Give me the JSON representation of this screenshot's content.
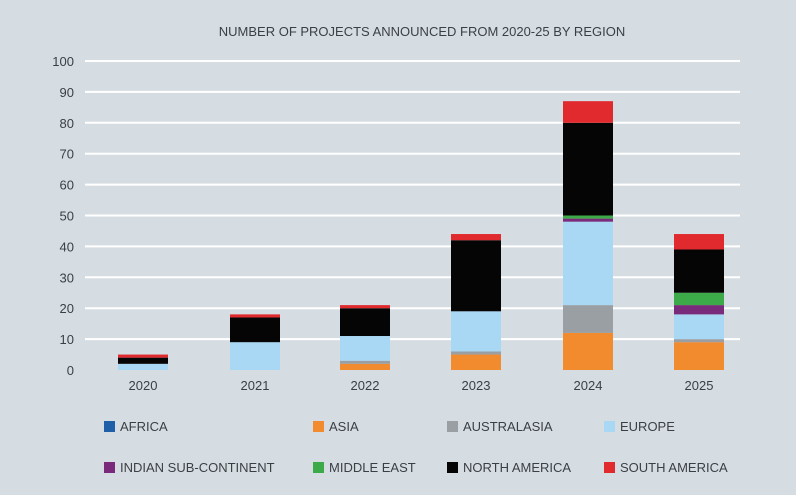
{
  "chart_data": {
    "type": "bar",
    "stacked": true,
    "title": "NUMBER OF PROJECTS ANNOUNCED FROM 2020-25 BY REGION",
    "xlabel": "",
    "ylabel": "",
    "ylim": [
      0,
      100
    ],
    "yticks": [
      "0",
      "10",
      "20",
      "30",
      "40",
      "50",
      "60",
      "70",
      "80",
      "90",
      "100"
    ],
    "grid": true,
    "legend_position": "bottom",
    "categories": [
      "2020",
      "2021",
      "2022",
      "2023",
      "2024",
      "2025"
    ],
    "series": [
      {
        "name": "AFRICA",
        "color": "#1f5fa8",
        "values": [
          0,
          0,
          0,
          0,
          0,
          0
        ]
      },
      {
        "name": "ASIA",
        "color": "#f28a2e",
        "values": [
          0,
          0,
          2,
          5,
          12,
          9
        ]
      },
      {
        "name": "AUSTRALASIA",
        "color": "#9a9fa3",
        "values": [
          0,
          0,
          1,
          1,
          9,
          1
        ]
      },
      {
        "name": "EUROPE",
        "color": "#a8d8f4",
        "values": [
          2,
          9,
          8,
          13,
          27,
          8
        ]
      },
      {
        "name": "INDIAN SUB-CONTINENT",
        "color": "#7a2a7a",
        "values": [
          0,
          0,
          0,
          0,
          1,
          3
        ]
      },
      {
        "name": "MIDDLE EAST",
        "color": "#3daa4a",
        "values": [
          0,
          0,
          0,
          0,
          1,
          4
        ]
      },
      {
        "name": "NORTH AMERICA",
        "color": "#050505",
        "values": [
          2,
          8,
          9,
          23,
          30,
          14
        ]
      },
      {
        "name": "SOUTH AMERICA",
        "color": "#e02a2e",
        "values": [
          1,
          1,
          1,
          2,
          7,
          5
        ]
      }
    ]
  }
}
